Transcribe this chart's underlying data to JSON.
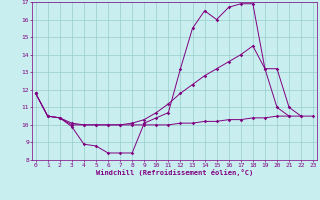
{
  "xlabel": "Windchill (Refroidissement éolien,°C)",
  "background_color": "#c8eef0",
  "line_color": "#800080",
  "grid_color": "#99cccc",
  "xlim": [
    -0.3,
    23.3
  ],
  "ylim": [
    8,
    17
  ],
  "yticks": [
    8,
    9,
    10,
    11,
    12,
    13,
    14,
    15,
    16,
    17
  ],
  "xticks": [
    0,
    1,
    2,
    3,
    4,
    5,
    6,
    7,
    8,
    9,
    10,
    11,
    12,
    13,
    14,
    15,
    16,
    17,
    18,
    19,
    20,
    21,
    22,
    23
  ],
  "hours": [
    0,
    1,
    2,
    3,
    4,
    5,
    6,
    7,
    8,
    9,
    10,
    11,
    12,
    13,
    14,
    15,
    16,
    17,
    18,
    19,
    20,
    21,
    22,
    23
  ],
  "series1_x": [
    0,
    1,
    2,
    3,
    4,
    5,
    6,
    7,
    8,
    9,
    10,
    11,
    12,
    13,
    14,
    15,
    16,
    17,
    18,
    19,
    20,
    21
  ],
  "series1_y": [
    11.8,
    10.5,
    10.4,
    9.9,
    8.9,
    8.8,
    8.4,
    8.4,
    8.4,
    10.1,
    10.4,
    10.7,
    13.2,
    15.5,
    16.5,
    16.0,
    16.7,
    16.9,
    16.9,
    13.2,
    11.0,
    10.5
  ],
  "series2_x": [
    0,
    1,
    2,
    3,
    4,
    5,
    6,
    7,
    8,
    9,
    10,
    11,
    12,
    13,
    14,
    15,
    16,
    17,
    18,
    19,
    20,
    21,
    22
  ],
  "series2_y": [
    11.8,
    10.5,
    10.4,
    10.0,
    10.0,
    10.0,
    10.0,
    10.0,
    10.1,
    10.3,
    10.7,
    11.2,
    11.8,
    12.3,
    12.8,
    13.2,
    13.6,
    14.0,
    14.5,
    13.2,
    13.2,
    11.0,
    10.5
  ],
  "series3_x": [
    0,
    1,
    2,
    3,
    4,
    5,
    6,
    7,
    8,
    9,
    10,
    11,
    12,
    13,
    14,
    15,
    16,
    17,
    18,
    19,
    20,
    21,
    22,
    23
  ],
  "series3_y": [
    11.8,
    10.5,
    10.4,
    10.1,
    10.0,
    10.0,
    10.0,
    10.0,
    10.0,
    10.0,
    10.0,
    10.0,
    10.1,
    10.1,
    10.2,
    10.2,
    10.3,
    10.3,
    10.4,
    10.4,
    10.5,
    10.5,
    10.5,
    10.5
  ],
  "tick_fontsize": 4.5,
  "xlabel_fontsize": 5.0
}
